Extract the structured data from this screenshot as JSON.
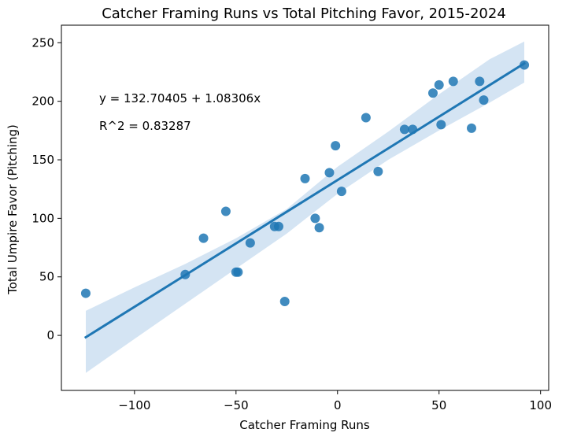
{
  "chart_data": {
    "type": "scatter",
    "title": "Catcher Framing Runs vs Total Pitching Favor, 2015-2024",
    "xlabel": "Catcher Framing Runs",
    "ylabel": "Total Umpire Favor (Pitching)",
    "xlim": [
      -136,
      104
    ],
    "ylim": [
      -47,
      265
    ],
    "xticks": [
      -100,
      -50,
      0,
      50,
      100
    ],
    "xtick_labels": [
      "−100",
      "−50",
      "0",
      "50",
      "100"
    ],
    "yticks": [
      0,
      50,
      100,
      150,
      200,
      250
    ],
    "ytick_labels": [
      "0",
      "50",
      "100",
      "150",
      "200",
      "250"
    ],
    "grid": false,
    "point_color": "#1f77b4",
    "fit_color": "#1f77b4",
    "ci_color": "#c6dbef",
    "points": [
      {
        "x": -124,
        "y": 36
      },
      {
        "x": -75,
        "y": 52
      },
      {
        "x": -66,
        "y": 83
      },
      {
        "x": -55,
        "y": 106
      },
      {
        "x": -50,
        "y": 54
      },
      {
        "x": -49,
        "y": 54
      },
      {
        "x": -43,
        "y": 79
      },
      {
        "x": -31,
        "y": 93
      },
      {
        "x": -29,
        "y": 93
      },
      {
        "x": -26,
        "y": 29
      },
      {
        "x": -16,
        "y": 134
      },
      {
        "x": -11,
        "y": 100
      },
      {
        "x": -9,
        "y": 92
      },
      {
        "x": -4,
        "y": 139
      },
      {
        "x": -1,
        "y": 162
      },
      {
        "x": 2,
        "y": 123
      },
      {
        "x": 14,
        "y": 186
      },
      {
        "x": 20,
        "y": 140
      },
      {
        "x": 33,
        "y": 176
      },
      {
        "x": 37,
        "y": 176
      },
      {
        "x": 47,
        "y": 207
      },
      {
        "x": 50,
        "y": 214
      },
      {
        "x": 51,
        "y": 180
      },
      {
        "x": 57,
        "y": 217
      },
      {
        "x": 66,
        "y": 177
      },
      {
        "x": 70,
        "y": 217
      },
      {
        "x": 72,
        "y": 201
      },
      {
        "x": 92,
        "y": 231
      }
    ],
    "fit": {
      "intercept": 132.70405,
      "slope": 1.08306,
      "x_range": [
        -124,
        92
      ]
    },
    "ci_band": [
      {
        "x": -124,
        "lower": -32,
        "upper": 21
      },
      {
        "x": -100,
        "lower": -3,
        "upper": 41
      },
      {
        "x": -75,
        "lower": 27,
        "upper": 61
      },
      {
        "x": -50,
        "lower": 57,
        "upper": 83
      },
      {
        "x": -25,
        "lower": 87,
        "upper": 108
      },
      {
        "x": 0,
        "lower": 121,
        "upper": 144
      },
      {
        "x": 25,
        "lower": 150,
        "upper": 174
      },
      {
        "x": 50,
        "lower": 175,
        "upper": 206
      },
      {
        "x": 75,
        "lower": 199,
        "upper": 236
      },
      {
        "x": 92,
        "lower": 216,
        "upper": 251
      }
    ],
    "annotations": {
      "equation": "y = 132.70405 + 1.08306x",
      "r_squared": "R^2 = 0.83287"
    }
  }
}
